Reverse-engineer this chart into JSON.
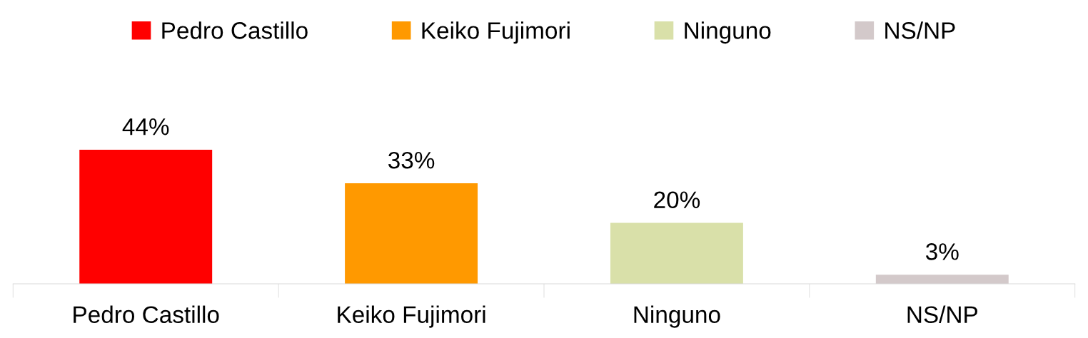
{
  "chart_data": {
    "type": "bar",
    "categories": [
      "Pedro Castillo",
      "Keiko Fujimori",
      "Ninguno",
      "NS/NP"
    ],
    "series": [
      {
        "name": "Pedro Castillo",
        "color": "#ff0000",
        "values": [
          44,
          null,
          null,
          null
        ],
        "value_labels": [
          "44%",
          null,
          null,
          null
        ]
      },
      {
        "name": "Keiko Fujimori",
        "color": "#ff9900",
        "values": [
          null,
          33,
          null,
          null
        ],
        "value_labels": [
          null,
          "33%",
          null,
          null
        ]
      },
      {
        "name": "Ninguno",
        "color": "#d9e0a9",
        "values": [
          null,
          null,
          20,
          null
        ],
        "value_labels": [
          null,
          null,
          "20%",
          null
        ]
      },
      {
        "name": "NS/NP",
        "color": "#d3c9ca",
        "values": [
          null,
          null,
          null,
          3
        ],
        "value_labels": [
          null,
          null,
          null,
          "3%"
        ]
      }
    ],
    "legend": "top"
  }
}
